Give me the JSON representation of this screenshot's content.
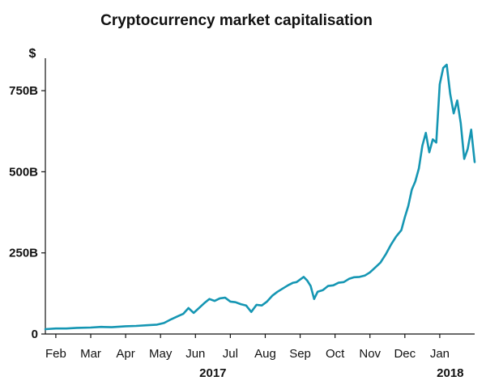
{
  "chart_data": {
    "type": "line",
    "title": "Cryptocurrency market capitalisation",
    "ylabel": "$",
    "ylim": [
      0,
      850
    ],
    "y_unit": "billion USD",
    "yticks": [
      {
        "value": 0,
        "label": "0"
      },
      {
        "value": 250,
        "label": "250B"
      },
      {
        "value": 500,
        "label": "500B"
      },
      {
        "value": 750,
        "label": "750B"
      }
    ],
    "xticks": [
      {
        "value": 1.0,
        "label": "Feb"
      },
      {
        "value": 2.0,
        "label": "Mar"
      },
      {
        "value": 3.0,
        "label": "Apr"
      },
      {
        "value": 4.0,
        "label": "May"
      },
      {
        "value": 5.0,
        "label": "Jun"
      },
      {
        "value": 6.0,
        "label": "Jul"
      },
      {
        "value": 7.0,
        "label": "Aug"
      },
      {
        "value": 8.0,
        "label": "Sep"
      },
      {
        "value": 9.0,
        "label": "Oct"
      },
      {
        "value": 10.0,
        "label": "Nov"
      },
      {
        "value": 11.0,
        "label": "Dec"
      },
      {
        "value": 12.0,
        "label": "Jan"
      }
    ],
    "year_labels": [
      {
        "value": 5.5,
        "label": "2017"
      },
      {
        "value": 12.3,
        "label": "2018"
      }
    ],
    "xlim": [
      0.7,
      13.0
    ],
    "grid": false,
    "line_color": "#1596b3",
    "series": [
      {
        "x": [
          0.7,
          1.0,
          1.3,
          1.6,
          2.0,
          2.3,
          2.6,
          3.0,
          3.3,
          3.6,
          3.9,
          4.1,
          4.3,
          4.5,
          4.65,
          4.8,
          4.95,
          5.1,
          5.25,
          5.4,
          5.55,
          5.7,
          5.85,
          6.0,
          6.15,
          6.3,
          6.45,
          6.6,
          6.75,
          6.9,
          7.05,
          7.2,
          7.35,
          7.5,
          7.65,
          7.8,
          7.9,
          8.0,
          8.1,
          8.2,
          8.3,
          8.4,
          8.5,
          8.65,
          8.8,
          8.95,
          9.1,
          9.25,
          9.4,
          9.55,
          9.7,
          9.85,
          10.0,
          10.15,
          10.3,
          10.45,
          10.6,
          10.75,
          10.9,
          11.0,
          11.1,
          11.2,
          11.3,
          11.4,
          11.5,
          11.6,
          11.7,
          11.8,
          11.9,
          12.0,
          12.1,
          12.2,
          12.3,
          12.4,
          12.5,
          12.6,
          12.7,
          12.8,
          12.9,
          13.0
        ],
        "y": [
          15,
          17,
          17,
          19,
          20,
          22,
          21,
          24,
          25,
          27,
          29,
          34,
          45,
          55,
          62,
          80,
          65,
          80,
          95,
          108,
          102,
          110,
          112,
          100,
          98,
          92,
          88,
          68,
          90,
          88,
          100,
          118,
          130,
          140,
          150,
          158,
          160,
          168,
          176,
          165,
          148,
          108,
          130,
          135,
          148,
          150,
          158,
          160,
          170,
          175,
          176,
          180,
          190,
          205,
          220,
          245,
          275,
          300,
          320,
          360,
          395,
          445,
          470,
          510,
          580,
          620,
          560,
          600,
          590,
          770,
          820,
          830,
          740,
          680,
          720,
          650,
          540,
          570,
          630,
          530
        ]
      }
    ]
  }
}
